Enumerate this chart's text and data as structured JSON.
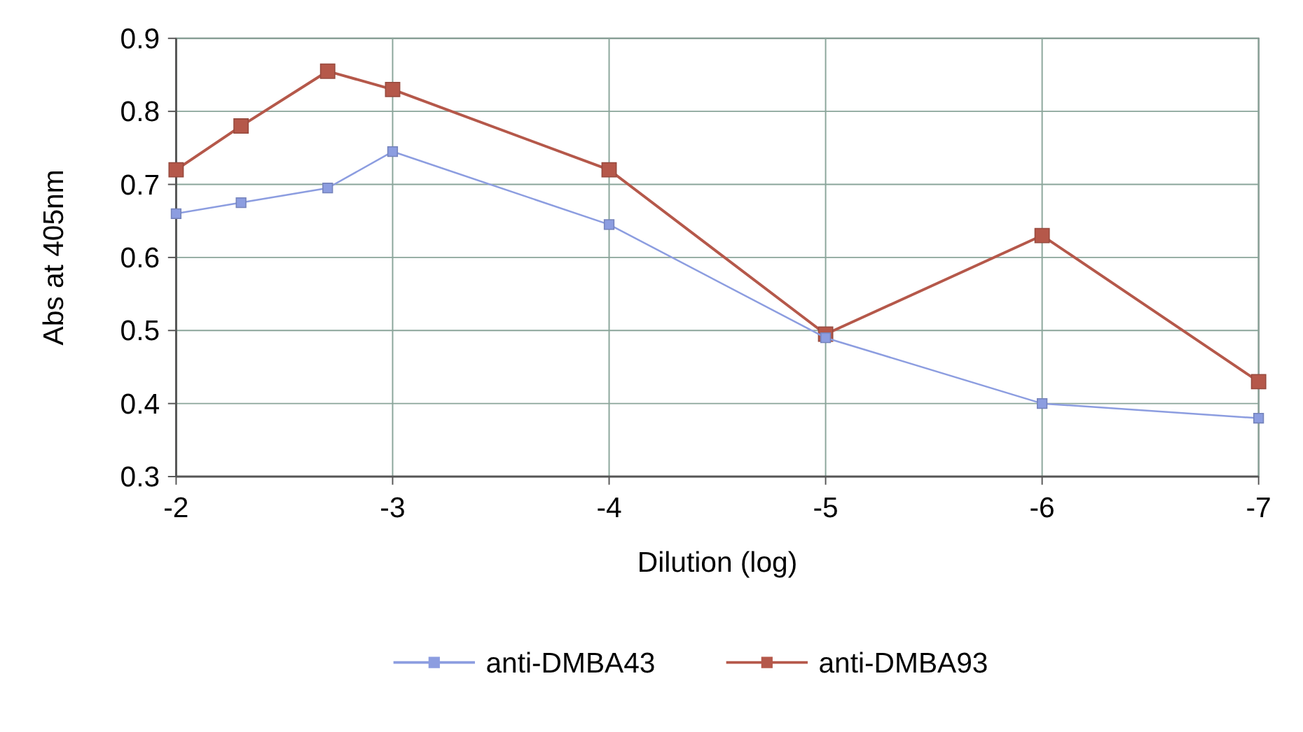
{
  "chart_data": {
    "type": "line",
    "xlabel": "Dilution (log)",
    "ylabel": "Abs at 405nm",
    "x": [
      -2,
      -2.3,
      -2.7,
      -3,
      -4,
      -5,
      -6,
      -7
    ],
    "xlim": [
      -2,
      -7
    ],
    "xticks": [
      -2,
      -3,
      -4,
      -5,
      -6,
      -7
    ],
    "ylim": [
      0.3,
      0.9
    ],
    "yticks": [
      0.3,
      0.4,
      0.5,
      0.6,
      0.7,
      0.8,
      0.9
    ],
    "grid": true,
    "legend": "bottom",
    "marker": "square",
    "line_style": "solid",
    "series": [
      {
        "name": "anti-DMBA43",
        "color": "#8c9de0",
        "values": [
          0.66,
          0.675,
          0.695,
          0.745,
          0.645,
          0.49,
          0.4,
          0.38
        ]
      },
      {
        "name": "anti-DMBA93",
        "color": "#b5584a",
        "values": [
          0.72,
          0.78,
          0.855,
          0.83,
          0.72,
          0.495,
          0.63,
          0.43
        ]
      }
    ]
  }
}
